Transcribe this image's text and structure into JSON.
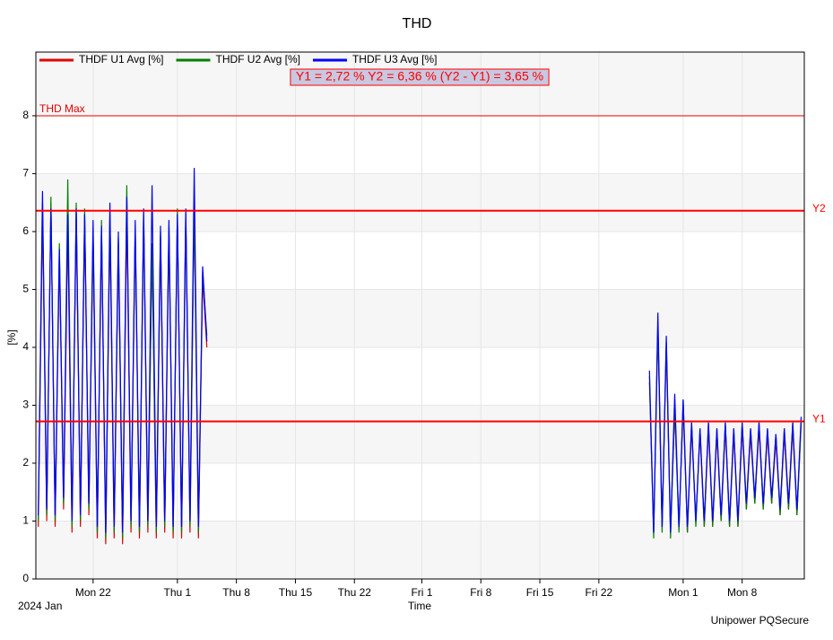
{
  "chart_data": {
    "type": "line",
    "title": "THD",
    "x_label": "Time",
    "y_label": "[%]",
    "x_start_label": "2024 Jan",
    "footer": "Unipower PQSecure",
    "readout": "Y1 = 2,72 %  Y2 = 6,36 %  (Y2 - Y1) = 3,65 %",
    "limit_line": {
      "name": "THD Max",
      "value": 8,
      "color": "#e00000"
    },
    "cursors": [
      {
        "name": "Y1",
        "value": 2.72,
        "color": "#ff0000"
      },
      {
        "name": "Y2",
        "value": 6.36,
        "color": "#ff0000"
      }
    ],
    "x": [
      "2024-01-15T12:00",
      "2024-01-16T00:00",
      "2024-01-16T12:00",
      "2024-01-17T00:00",
      "2024-01-17T12:00",
      "2024-01-18T00:00",
      "2024-01-18T12:00",
      "2024-01-19T00:00",
      "2024-01-19T12:00",
      "2024-01-20T00:00",
      "2024-01-20T12:00",
      "2024-01-21T00:00",
      "2024-01-21T12:00",
      "2024-01-22T00:00",
      "2024-01-22T12:00",
      "2024-01-23T00:00",
      "2024-01-23T12:00",
      "2024-01-24T00:00",
      "2024-01-24T12:00",
      "2024-01-25T00:00",
      "2024-01-25T12:00",
      "2024-01-26T00:00",
      "2024-01-26T12:00",
      "2024-01-27T00:00",
      "2024-01-27T12:00",
      "2024-01-28T00:00",
      "2024-01-28T12:00",
      "2024-01-29T00:00",
      "2024-01-29T12:00",
      "2024-01-30T00:00",
      "2024-01-30T12:00",
      "2024-01-31T00:00",
      "2024-01-31T12:00",
      "2024-02-01T00:00",
      "2024-02-01T12:00",
      "2024-02-02T00:00",
      "2024-02-02T12:00",
      "2024-02-03T00:00",
      "2024-02-03T12:00",
      "2024-02-04T00:00",
      "2024-02-04T12:00",
      "2024-03-01T00:00",
      "2024-03-28T00:00",
      "2024-03-28T12:00",
      "2024-03-29T00:00",
      "2024-03-29T12:00",
      "2024-03-30T00:00",
      "2024-03-30T12:00",
      "2024-03-31T00:00",
      "2024-03-31T12:00",
      "2024-04-01T00:00",
      "2024-04-01T12:00",
      "2024-04-02T00:00",
      "2024-04-02T12:00",
      "2024-04-03T00:00",
      "2024-04-03T12:00",
      "2024-04-04T00:00",
      "2024-04-04T12:00",
      "2024-04-05T00:00",
      "2024-04-05T12:00",
      "2024-04-06T00:00",
      "2024-04-06T12:00",
      "2024-04-07T00:00",
      "2024-04-07T12:00",
      "2024-04-08T00:00",
      "2024-04-08T12:00",
      "2024-04-09T00:00",
      "2024-04-09T12:00",
      "2024-04-10T00:00",
      "2024-04-10T12:00",
      "2024-04-11T00:00",
      "2024-04-11T12:00",
      "2024-04-12T00:00",
      "2024-04-12T12:00",
      "2024-04-13T00:00",
      "2024-04-13T12:00",
      "2024-04-14T00:00",
      "2024-04-14T12:00",
      "2024-04-15T00:00"
    ],
    "series": [
      {
        "name": "THDF U1 Avg [%]",
        "color": "#e00000",
        "values": [
          0.9,
          6.3,
          1.0,
          6.5,
          0.9,
          5.6,
          1.2,
          6.1,
          0.8,
          6.3,
          0.9,
          6.2,
          1.1,
          5.9,
          0.7,
          6.0,
          0.6,
          6.1,
          0.7,
          5.8,
          0.6,
          6.3,
          0.8,
          6.0,
          0.7,
          6.2,
          0.8,
          5.7,
          0.7,
          5.9,
          0.8,
          6.0,
          0.7,
          6.3,
          0.7,
          6.2,
          0.8,
          6.4,
          0.7,
          5.2,
          4.0,
          null,
          3.4,
          0.8,
          4.3,
          0.9,
          4.0,
          0.8,
          2.9,
          0.9,
          3.0,
          0.8,
          2.6,
          1.0,
          2.5,
          0.9,
          2.6,
          0.9,
          2.5,
          1.0,
          2.6,
          0.9,
          2.5,
          0.9,
          2.6,
          1.2,
          2.5,
          1.3,
          2.6,
          1.2,
          2.5,
          1.3,
          2.4,
          1.1,
          2.5,
          1.2,
          2.6,
          1.1,
          2.7
        ]
      },
      {
        "name": "THDF U2 Avg [%]",
        "color": "#008000",
        "values": [
          1.0,
          6.5,
          1.1,
          6.6,
          1.0,
          5.8,
          1.3,
          6.9,
          0.9,
          6.5,
          1.0,
          6.4,
          1.2,
          6.0,
          0.8,
          6.2,
          0.7,
          6.3,
          0.8,
          5.9,
          0.7,
          6.8,
          0.9,
          6.1,
          0.8,
          6.3,
          0.9,
          5.8,
          0.8,
          6.0,
          0.9,
          6.1,
          0.8,
          6.4,
          0.8,
          6.3,
          0.9,
          6.5,
          0.8,
          5.3,
          4.2,
          null,
          3.5,
          0.7,
          4.4,
          0.8,
          4.1,
          0.7,
          3.0,
          0.8,
          3.1,
          0.8,
          2.7,
          0.9,
          2.6,
          0.9,
          2.7,
          0.9,
          2.6,
          1.0,
          2.7,
          0.9,
          2.6,
          0.9,
          2.7,
          1.2,
          2.6,
          1.3,
          2.7,
          1.2,
          2.6,
          1.3,
          2.5,
          1.1,
          2.6,
          1.2,
          2.7,
          1.1,
          2.7
        ]
      },
      {
        "name": "THDF U3 Avg [%]",
        "color": "#0000ff",
        "values": [
          1.1,
          6.7,
          1.2,
          6.4,
          1.1,
          5.7,
          1.4,
          6.3,
          1.0,
          6.4,
          1.1,
          6.3,
          1.3,
          6.2,
          0.9,
          6.1,
          0.8,
          6.5,
          0.9,
          6.0,
          0.8,
          6.6,
          1.0,
          6.2,
          0.9,
          6.4,
          1.0,
          6.8,
          0.9,
          6.1,
          1.0,
          6.2,
          0.9,
          6.3,
          0.9,
          6.4,
          1.0,
          7.1,
          0.9,
          5.4,
          4.1,
          null,
          3.6,
          0.8,
          4.6,
          0.9,
          4.2,
          0.8,
          3.2,
          0.9,
          3.1,
          0.9,
          2.7,
          1.0,
          2.6,
          1.0,
          2.7,
          1.0,
          2.6,
          1.1,
          2.7,
          1.0,
          2.6,
          1.0,
          2.7,
          1.3,
          2.6,
          1.4,
          2.7,
          1.3,
          2.6,
          1.4,
          2.5,
          1.2,
          2.6,
          1.3,
          2.7,
          1.2,
          2.8
        ]
      }
    ],
    "xlim": [
      "2024-01-15T05:00",
      "2024-04-15T09:00"
    ],
    "xticks": [
      {
        "value": "2024-01-22T00:00",
        "label": "Mon 22"
      },
      {
        "value": "2024-02-01T00:00",
        "label": "Thu 1"
      },
      {
        "value": "2024-02-08T00:00",
        "label": "Thu 8"
      },
      {
        "value": "2024-02-15T00:00",
        "label": "Thu 15"
      },
      {
        "value": "2024-02-22T00:00",
        "label": "Thu 22"
      },
      {
        "value": "2024-03-01T00:00",
        "label": "Fri 1"
      },
      {
        "value": "2024-03-08T00:00",
        "label": "Fri 8"
      },
      {
        "value": "2024-03-15T00:00",
        "label": "Fri 15"
      },
      {
        "value": "2024-03-22T00:00",
        "label": "Fri 22"
      },
      {
        "value": "2024-04-01T00:00",
        "label": "Mon 1"
      },
      {
        "value": "2024-04-08T00:00",
        "label": "Mon 8"
      }
    ],
    "ylim": [
      0,
      9.1
    ],
    "yticks": [
      0,
      1,
      2,
      3,
      4,
      5,
      6,
      7,
      8
    ],
    "grid": true
  }
}
